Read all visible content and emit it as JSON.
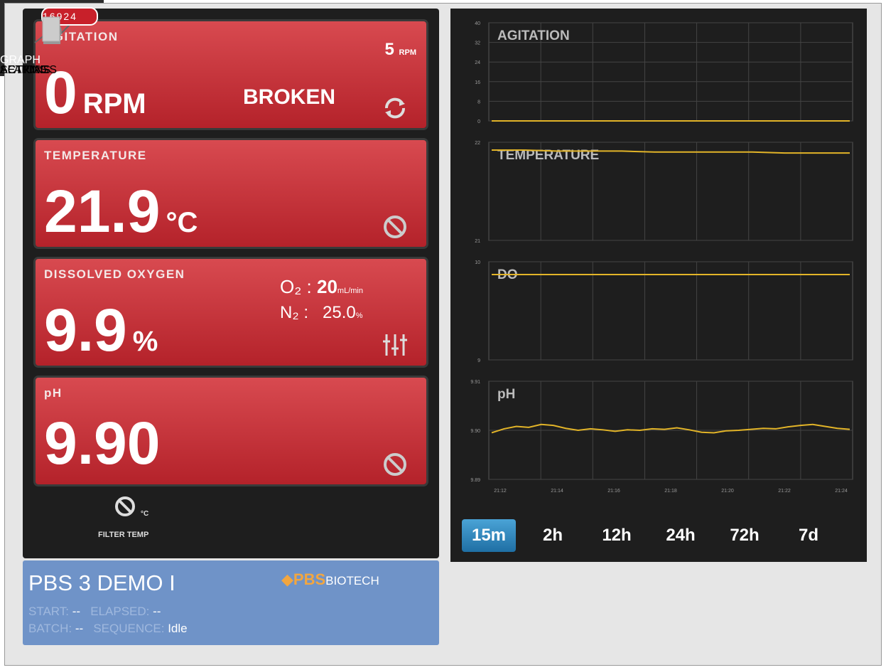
{
  "panels": [
    {
      "label": "AGITATION",
      "value": "0",
      "unit": "RPM",
      "setpoint": "5",
      "setpoint_unit": "RPM",
      "status": "BROKEN"
    },
    {
      "label": "TEMPERATURE",
      "value": "21.9",
      "unit": "°C"
    },
    {
      "label": "DISSOLVED OXYGEN",
      "value": "9.9",
      "unit": "%",
      "o2_label": "O₂ :",
      "o2_value": "20",
      "o2_unit": "mL/min",
      "n2_label": "N₂ :",
      "n2_value": "25.0",
      "n2_unit": "%"
    },
    {
      "label": "pH",
      "value": "9.90"
    }
  ],
  "filter_temp": {
    "unit": "°C",
    "label": "FILTER TEMP"
  },
  "info": {
    "name": "PBS 3 DEMO I",
    "logo_mark": "PBS",
    "logo_text": "BIOTECH",
    "start_label": "START:",
    "start": "--",
    "elapsed_label": "ELAPSED:",
    "elapsed": "--",
    "batch_label": "BATCH:",
    "batch": "--",
    "sequence_label": "SEQUENCE:",
    "sequence": "Idle"
  },
  "charts": [
    {
      "type": "line",
      "title": "AGITATION",
      "color": "#e2b428",
      "ylim": [
        0,
        40
      ],
      "yticks": [
        0,
        8,
        16,
        24,
        32,
        40
      ],
      "values": [
        0,
        0,
        0,
        0,
        0,
        0,
        0,
        0,
        0,
        0,
        0,
        0
      ]
    },
    {
      "type": "line",
      "title": "TEMPERATURE",
      "color": "#e2b428",
      "ylim": [
        21,
        22
      ],
      "yticks": [
        21,
        22
      ],
      "values": [
        21.92,
        21.92,
        21.91,
        21.91,
        21.91,
        21.9,
        21.9,
        21.9,
        21.9,
        21.89,
        21.89,
        21.89
      ]
    },
    {
      "type": "line",
      "title": "DO",
      "color": "#e2b428",
      "ylim": [
        9,
        10
      ],
      "yticks": [
        9,
        10
      ],
      "values": [
        9.87,
        9.87,
        9.87,
        9.87,
        9.87,
        9.87,
        9.87,
        9.87,
        9.87,
        9.87,
        9.87,
        9.87
      ]
    },
    {
      "type": "line",
      "title": "pH",
      "color": "#e2b428",
      "ylim": [
        9.89,
        9.91
      ],
      "yticks": [
        9.89,
        {
          "value": 9.9,
          "label": "9.90"
        },
        9.91
      ],
      "categories": [
        "21:12",
        "21:14",
        "21:16",
        "21:18",
        "21:20",
        "21:22",
        "21:24"
      ],
      "values": [
        9.8995,
        9.9003,
        9.9008,
        9.9006,
        9.9012,
        9.901,
        9.9004,
        9.9,
        9.9003,
        9.9001,
        9.8998,
        9.9001,
        9.9,
        9.9003,
        9.9002,
        9.9005,
        9.9001,
        9.8996,
        9.8995,
        9.8999,
        9.9,
        9.9002,
        9.9004,
        9.9003,
        9.9007,
        9.901,
        9.9012,
        9.9008,
        9.9004,
        9.9002
      ]
    }
  ],
  "ranges": {
    "items": [
      "15m",
      "2h",
      "12h",
      "24h",
      "72h",
      "7d"
    ],
    "active": "15m"
  },
  "tabs": {
    "items": [
      "GRAPH",
      "ACTIONS",
      "ALARMS",
      "SETTINGS"
    ],
    "alarm_count": "16924"
  }
}
